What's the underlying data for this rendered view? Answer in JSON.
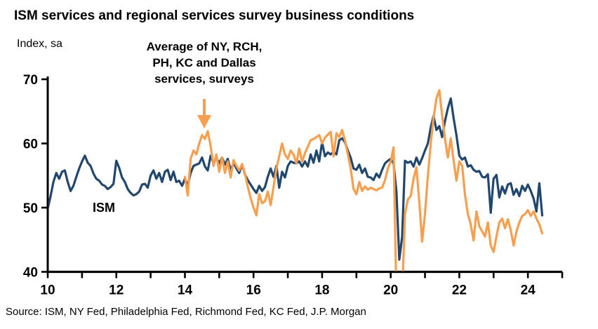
{
  "title": "ISM services and regional services survey business conditions",
  "subtitle": "Index, sa",
  "source": "Source: ISM, NY Fed, Philadelphia Fed, Richmond Fed, KC Fed, J.P. Morgan",
  "annotation": {
    "line1": "Average of NY, RCH,",
    "line2": "PH, KC and Dallas",
    "line3": "services, surveys"
  },
  "ism_label": "ISM",
  "colors": {
    "ism": "#21476f",
    "regional": "#f79e4f",
    "axis": "#000000",
    "text": "#000000"
  },
  "chart_data": {
    "type": "line",
    "title": "ISM services and regional services survey business conditions",
    "ylabel": "Index, sa",
    "xlabel": "",
    "xlim": [
      10,
      25
    ],
    "ylim": [
      40,
      70
    ],
    "yticks": [
      40,
      50,
      60,
      70
    ],
    "xticks_minor_step": 1,
    "xtick_labels": [
      10,
      12,
      14,
      16,
      18,
      20,
      22,
      24
    ],
    "grid": false,
    "legend_position": "inline-annotations",
    "series": [
      {
        "name": "ISM",
        "color": "#21476f",
        "x_start": 2010.0,
        "x_step_years": 0.08333,
        "values": [
          49.8,
          51.8,
          54.0,
          55.4,
          54.5,
          55.6,
          55.8,
          54.0,
          52.6,
          53.4,
          54.8,
          56.1,
          57.2,
          58.1,
          57.0,
          56.5,
          55.3,
          54.5,
          54.2,
          53.6,
          53.4,
          52.9,
          53.2,
          53.7,
          57.3,
          56.2,
          54.7,
          54.0,
          52.9,
          52.3,
          51.9,
          52.1,
          52.5,
          53.6,
          53.7,
          53.1,
          55.0,
          55.8,
          54.5,
          55.4,
          54.0,
          55.6,
          55.9,
          54.3,
          55.6,
          54.0,
          54.2,
          53.4,
          54.5,
          53.4,
          55.4,
          56.5,
          56.7,
          56.9,
          57.8,
          56.4,
          55.8,
          58.1,
          56.9,
          57.8,
          56.9,
          57.8,
          56.7,
          57.6,
          55.8,
          57.0,
          56.1,
          55.4,
          56.7,
          55.2,
          54.3,
          53.6,
          52.9,
          52.3,
          53.4,
          52.6,
          53.2,
          54.8,
          56.1,
          54.8,
          56.5,
          53.1,
          55.6,
          54.7,
          56.5,
          57.2,
          57.0,
          56.9,
          57.2,
          56.4,
          57.2,
          56.4,
          58.3,
          57.0,
          58.9,
          57.2,
          60.2,
          58.0,
          58.6,
          58.3,
          58.7,
          58.3,
          60.5,
          60.8,
          60.2,
          58.9,
          57.8,
          56.1,
          55.9,
          56.7,
          55.4,
          56.1,
          54.8,
          54.7,
          54.3,
          55.3,
          54.7,
          55.9,
          56.9,
          57.3,
          57.6,
          56.9,
          52.5,
          41.9,
          45.4,
          57.3,
          57.0,
          57.2,
          56.4,
          57.8,
          56.7,
          57.7,
          58.9,
          60.0,
          62.5,
          64.3,
          62.1,
          62.7,
          61.0,
          63.5,
          65.5,
          67.0,
          64.0,
          61.3,
          58.1,
          57.5,
          57.8,
          56.4,
          56.6,
          55.9,
          55.6,
          55.7,
          54.8,
          54.7,
          55.2,
          49.2,
          54.5,
          55.1,
          51.6,
          53.3,
          52.2,
          53.6,
          53.8,
          52.0,
          52.9,
          51.8,
          53.4,
          52.6,
          53.6,
          52.6,
          51.4,
          49.4,
          53.8,
          48.8
        ]
      },
      {
        "name": "Average of NY, RCH, PH, KC and Dallas services, surveys",
        "color": "#f79e4f",
        "x_start": 2014.0,
        "x_step_years": 0.08333,
        "values": [
          54.8,
          51.9,
          57.6,
          58.9,
          58.3,
          60.0,
          61.3,
          60.7,
          61.9,
          59.6,
          56.5,
          58.3,
          55.6,
          57.8,
          55.4,
          57.2,
          54.7,
          57.4,
          56.5,
          55.8,
          56.8,
          55.3,
          53.2,
          51.5,
          50.0,
          48.8,
          52.1,
          50.7,
          51.0,
          52.5,
          50.4,
          53.2,
          56.1,
          58.0,
          60.0,
          58.3,
          57.6,
          58.9,
          58.3,
          56.9,
          59.2,
          57.2,
          58.5,
          59.5,
          60.5,
          60.7,
          61.0,
          61.3,
          60.0,
          60.9,
          61.4,
          61.8,
          58.0,
          61.6,
          61.0,
          62.1,
          60.5,
          58.3,
          56.1,
          52.9,
          52.1,
          54.0,
          52.6,
          53.3,
          52.8,
          53.1,
          52.9,
          52.7,
          53.0,
          53.1,
          54.3,
          56.1,
          57.2,
          59.4,
          36.0,
          30.0,
          36.0,
          49.0,
          51.3,
          51.8,
          54.5,
          56.3,
          50.9,
          44.7,
          49.0,
          55.0,
          60.0,
          64.0,
          67.0,
          68.3,
          64.3,
          60.7,
          57.8,
          60.8,
          57.4,
          54.2,
          57.2,
          56.5,
          52.0,
          49.0,
          47.4,
          44.9,
          49.4,
          47.1,
          46.3,
          45.5,
          47.7,
          44.1,
          43.1,
          45.5,
          47.7,
          48.3,
          46.8,
          48.2,
          46.5,
          44.1,
          46.3,
          47.7,
          48.7,
          49.0,
          49.6,
          48.7,
          49.4,
          48.3,
          47.4,
          46.0
        ]
      }
    ]
  }
}
